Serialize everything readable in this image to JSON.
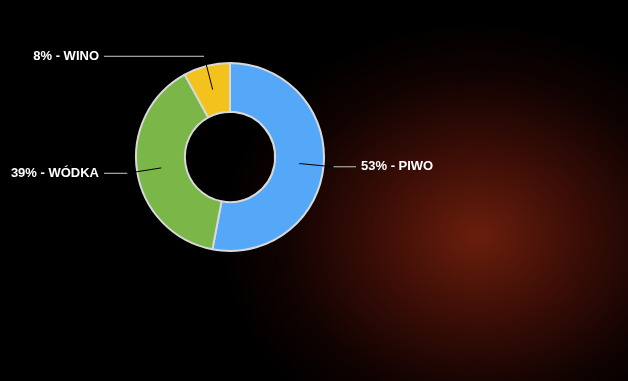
{
  "chart_data": {
    "type": "doughnut",
    "categories": [
      "PIWO",
      "WÓDKA",
      "WINO"
    ],
    "values": [
      53,
      39,
      8
    ],
    "value_labels": [
      "53% - PIWO",
      "39% - WÓDKA",
      "8% - WINO"
    ],
    "colors": [
      "#55a8f7",
      "#7ab648",
      "#f4c21c"
    ],
    "data_labels": true
  }
}
